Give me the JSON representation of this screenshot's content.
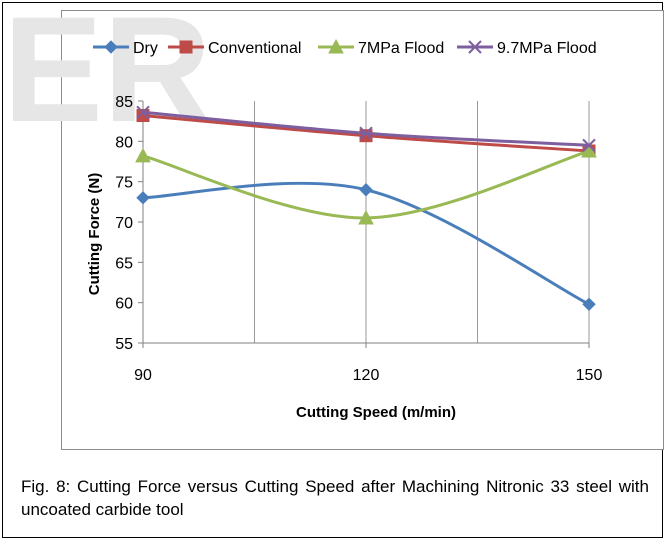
{
  "watermark": "ER",
  "caption": "Fig. 8: Cutting Force versus Cutting Speed after Machining Nitronic 33 steel with uncoated carbide tool",
  "chart_data": {
    "type": "line",
    "x": [
      90,
      120,
      150
    ],
    "xlabel": "Cutting Speed (m/min)",
    "ylabel": "Cutting Force (N)",
    "ylim": [
      55,
      85
    ],
    "yticks": [
      55,
      60,
      65,
      70,
      75,
      80,
      85
    ],
    "xticks": [
      90,
      120,
      150
    ],
    "grid": "vertical",
    "legend_position": "top",
    "series": [
      {
        "name": "Dry",
        "values": [
          73,
          74,
          59.8
        ],
        "color": "#4a7ebb",
        "marker": "diamond"
      },
      {
        "name": "Conventional",
        "values": [
          83.2,
          80.7,
          78.8
        ],
        "color": "#be4b48",
        "marker": "square"
      },
      {
        "name": "7MPa Flood",
        "values": [
          78.2,
          70.5,
          78.8
        ],
        "color": "#98b954",
        "marker": "triangle"
      },
      {
        "name": "9.7MPa Flood",
        "values": [
          83.6,
          81,
          79.5
        ],
        "color": "#7d5fa0",
        "marker": "x"
      }
    ]
  }
}
